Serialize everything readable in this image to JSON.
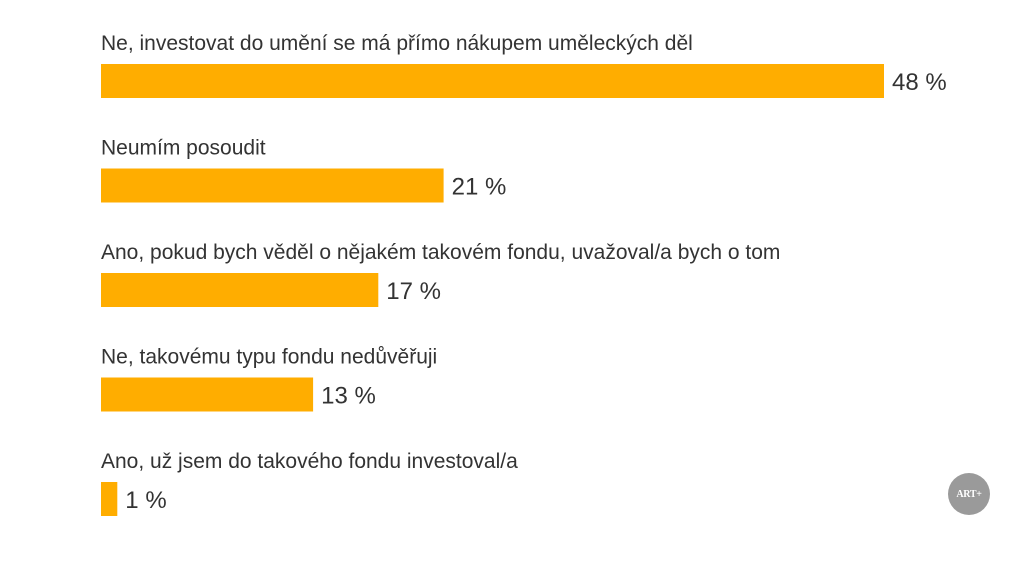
{
  "chart_data": {
    "type": "bar",
    "orientation": "horizontal",
    "categories": [
      "Ne, investovat do umění se má přímo nákupem uměleckých děl",
      "Neumím posoudit",
      "Ano, pokud bych věděl o nějakém takovém fondu, uvažoval/a bych o tom",
      "Ne, takovému typu fondu nedůvěřuji",
      "Ano, už jsem do takového fondu investoval/a"
    ],
    "values": [
      48,
      21,
      17,
      13,
      1
    ],
    "value_labels": [
      "48 %",
      "21 %",
      "17 %",
      "13 %",
      "1 %"
    ],
    "unit": "%",
    "xlim": [
      0,
      48
    ],
    "grid": false,
    "legend": "none",
    "bar_color": "#FFAD00"
  },
  "logo": {
    "text": "ART+"
  }
}
